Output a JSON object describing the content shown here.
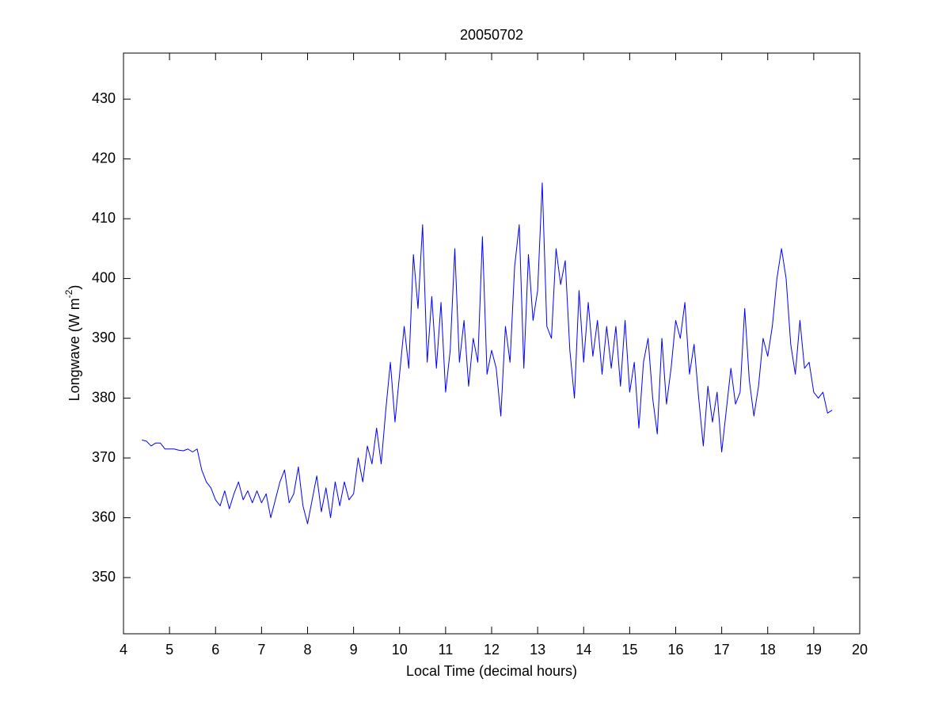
{
  "chart_data": {
    "type": "line",
    "title": "20050702",
    "xlabel": "Local Time (decimal hours)",
    "ylabel": {
      "text": "Longwave (W m",
      "superscript": "-2",
      "suffix": ")"
    },
    "xlim": [
      4,
      20
    ],
    "ylim": [
      340.6,
      437.7
    ],
    "xticks": [
      4,
      5,
      6,
      7,
      8,
      9,
      10,
      11,
      12,
      13,
      14,
      15,
      16,
      17,
      18,
      19,
      20
    ],
    "yticks": [
      350,
      360,
      370,
      380,
      390,
      400,
      410,
      420,
      430
    ],
    "grid": false,
    "series": [
      {
        "color": "#0000ff",
        "x": [
          4.4,
          4.5,
          4.6,
          4.7,
          4.8,
          4.9,
          5.0,
          5.1,
          5.2,
          5.3,
          5.4,
          5.5,
          5.6,
          5.7,
          5.8,
          5.9,
          6.0,
          6.1,
          6.2,
          6.3,
          6.4,
          6.5,
          6.6,
          6.7,
          6.8,
          6.9,
          7.0,
          7.1,
          7.2,
          7.3,
          7.4,
          7.5,
          7.6,
          7.7,
          7.8,
          7.9,
          8.0,
          8.1,
          8.2,
          8.3,
          8.4,
          8.5,
          8.6,
          8.7,
          8.8,
          8.9,
          9.0,
          9.1,
          9.2,
          9.3,
          9.4,
          9.5,
          9.6,
          9.7,
          9.8,
          9.9,
          10.0,
          10.1,
          10.2,
          10.3,
          10.4,
          10.5,
          10.6,
          10.7,
          10.8,
          10.9,
          11.0,
          11.1,
          11.2,
          11.3,
          11.4,
          11.5,
          11.6,
          11.7,
          11.8,
          11.9,
          12.0,
          12.1,
          12.2,
          12.3,
          12.4,
          12.5,
          12.6,
          12.7,
          12.8,
          12.9,
          13.0,
          13.1,
          13.2,
          13.3,
          13.4,
          13.5,
          13.6,
          13.7,
          13.8,
          13.9,
          14.0,
          14.1,
          14.2,
          14.3,
          14.4,
          14.5,
          14.6,
          14.7,
          14.8,
          14.9,
          15.0,
          15.1,
          15.2,
          15.3,
          15.4,
          15.5,
          15.6,
          15.7,
          15.8,
          15.9,
          16.0,
          16.1,
          16.2,
          16.3,
          16.4,
          16.5,
          16.6,
          16.7,
          16.8,
          16.9,
          17.0,
          17.1,
          17.2,
          17.3,
          17.4,
          17.5,
          17.6,
          17.7,
          17.8,
          17.9,
          18.0,
          18.1,
          18.2,
          18.3,
          18.4,
          18.5,
          18.6,
          18.7,
          18.8,
          18.9,
          19.0,
          19.1,
          19.2,
          19.3,
          19.4
        ],
        "values": [
          373,
          372.8,
          372,
          372.5,
          372.5,
          371.5,
          371.5,
          371.5,
          371.3,
          371.2,
          371.5,
          371,
          371.5,
          368,
          366,
          365,
          363,
          362,
          364.5,
          361.5,
          364,
          366,
          363,
          364.5,
          362.5,
          364.5,
          362.5,
          364,
          360,
          363,
          366,
          368,
          362.5,
          364,
          368.5,
          362,
          359,
          363,
          367,
          361,
          365,
          360,
          366,
          362,
          366,
          363,
          364,
          370,
          366,
          372,
          369,
          375,
          369,
          378,
          386,
          376,
          384,
          392,
          385,
          404,
          395,
          409,
          386,
          397,
          385,
          396,
          381,
          388,
          405,
          386,
          393,
          382,
          390,
          386,
          407,
          384,
          388,
          385,
          377,
          392,
          386,
          402,
          409,
          385,
          404,
          393,
          398,
          416,
          392,
          390,
          405,
          399,
          403,
          388,
          380,
          398,
          386,
          396,
          387,
          393,
          384,
          392,
          385,
          392,
          382,
          393,
          381,
          386,
          375,
          386,
          390,
          380,
          374,
          390,
          379,
          385,
          393,
          390,
          396,
          384,
          389,
          380,
          372,
          382,
          376,
          381,
          371,
          378,
          385,
          379,
          381,
          395,
          383,
          377,
          382,
          390,
          387,
          392,
          400,
          405,
          400,
          389,
          384,
          393,
          385,
          386,
          381,
          380,
          381,
          377.5,
          378
        ]
      }
    ]
  }
}
